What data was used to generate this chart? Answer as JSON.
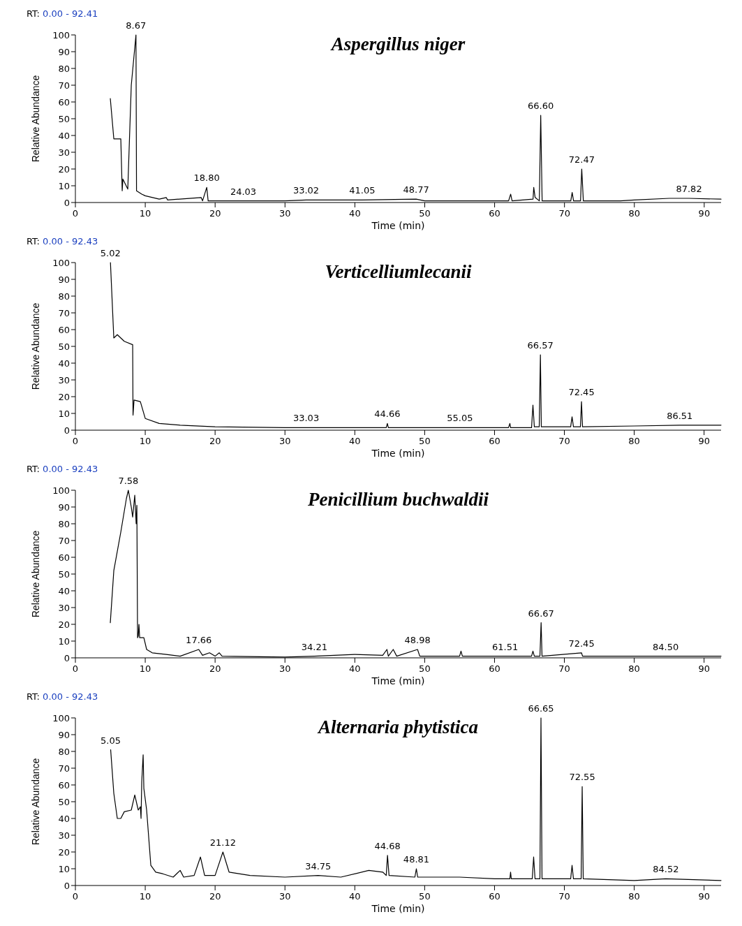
{
  "chart_data": [
    {
      "type": "line",
      "title": "Aspergillus niger",
      "xlabel": "Time (min)",
      "ylabel": "Relative Abundance",
      "color": "#000000",
      "xlim": [
        0,
        92.41
      ],
      "ylim": [
        0,
        100
      ],
      "xticks": [
        0,
        10,
        20,
        30,
        40,
        50,
        60,
        70,
        80,
        90
      ],
      "yticks": [
        0,
        10,
        20,
        30,
        40,
        50,
        60,
        70,
        80,
        90,
        100
      ],
      "x": [
        5,
        5.5,
        6.5,
        6.7,
        6.8,
        7.5,
        8,
        8.67,
        8.75,
        9.5,
        10,
        12,
        13,
        13.2,
        18,
        18.2,
        18.8,
        19,
        24.03,
        30,
        33.02,
        41.05,
        48.77,
        50,
        62,
        62.3,
        62.5,
        65.5,
        65.6,
        65.8,
        66.4,
        66.6,
        66.8,
        70.9,
        71.1,
        71.3,
        72.3,
        72.47,
        72.7,
        78,
        80,
        85,
        87.82,
        92.41
      ],
      "values": [
        62,
        38,
        38,
        7,
        14,
        8,
        70,
        100,
        7,
        5,
        4,
        2,
        3,
        1.5,
        3,
        1,
        9,
        1,
        1,
        1,
        1.5,
        1.5,
        2,
        1,
        1,
        5,
        1,
        2,
        9,
        3,
        1,
        52,
        1,
        1,
        6,
        1,
        1,
        20,
        1,
        1,
        1.5,
        2.5,
        2.5,
        2
      ],
      "annotations": [
        "RT: 0.00 - 92.41",
        {
          "text": "8.67",
          "x": 8.67,
          "y": 100
        },
        {
          "text": "18.80",
          "x": 18.8,
          "y": 9
        },
        {
          "text": "24.03",
          "x": 24.03,
          "y": 1
        },
        {
          "text": "33.02",
          "x": 33.02,
          "y": 1.5
        },
        {
          "text": "41.05",
          "x": 41.05,
          "y": 1.5
        },
        {
          "text": "48.77",
          "x": 48.77,
          "y": 2
        },
        {
          "text": "66.60",
          "x": 66.6,
          "y": 52
        },
        {
          "text": "72.47",
          "x": 72.47,
          "y": 20
        },
        {
          "text": "87.82",
          "x": 87.82,
          "y": 2.5
        }
      ]
    },
    {
      "type": "line",
      "title": "Verticelliumlecanii",
      "xlabel": "Time (min)",
      "ylabel": "Relative Abundance",
      "color": "#000000",
      "xlim": [
        0,
        92.43
      ],
      "ylim": [
        0,
        100
      ],
      "xticks": [
        0,
        10,
        20,
        30,
        40,
        50,
        60,
        70,
        80,
        90
      ],
      "yticks": [
        0,
        10,
        20,
        30,
        40,
        50,
        60,
        70,
        80,
        90,
        100
      ],
      "x": [
        5.02,
        5.5,
        6,
        7,
        8.2,
        8.25,
        8.4,
        9.3,
        10,
        12,
        15,
        20,
        30,
        33.03,
        44.5,
        44.66,
        44.8,
        55.05,
        62,
        62.2,
        62.3,
        65.3,
        65.5,
        65.7,
        66.4,
        66.57,
        66.7,
        70.9,
        71.1,
        71.3,
        72.3,
        72.45,
        72.6,
        80,
        86.51,
        92.43
      ],
      "values": [
        100,
        55,
        57,
        53,
        51,
        9,
        18,
        17,
        7,
        4,
        3,
        2,
        1.5,
        1.5,
        1.5,
        4,
        1.5,
        1.5,
        1.5,
        4,
        1.5,
        1.5,
        15,
        2,
        2,
        45,
        2,
        2,
        8,
        2,
        2,
        17,
        2,
        2.5,
        3,
        3
      ],
      "annotations": [
        "RT: 0.00 - 92.43",
        {
          "text": "5.02",
          "x": 5.02,
          "y": 100
        },
        {
          "text": "33.03",
          "x": 33.03,
          "y": 1.5
        },
        {
          "text": "44.66",
          "x": 44.66,
          "y": 4
        },
        {
          "text": "55.05",
          "x": 55.05,
          "y": 1.5
        },
        {
          "text": "66.57",
          "x": 66.57,
          "y": 45
        },
        {
          "text": "72.45",
          "x": 72.45,
          "y": 17
        },
        {
          "text": "86.51",
          "x": 86.51,
          "y": 3
        }
      ]
    },
    {
      "type": "line",
      "title": "Penicillium buchwaldii",
      "xlabel": "Time (min)",
      "ylabel": "Relative Abundance",
      "color": "#000000",
      "xlim": [
        0,
        92.43
      ],
      "ylim": [
        0,
        100
      ],
      "xticks": [
        0,
        10,
        20,
        30,
        40,
        50,
        60,
        70,
        80,
        90
      ],
      "yticks": [
        0,
        10,
        20,
        30,
        40,
        50,
        60,
        70,
        80,
        90,
        100
      ],
      "x": [
        5,
        5.5,
        6.5,
        7.3,
        7.58,
        8,
        8.2,
        8.5,
        8.7,
        8.8,
        8.9,
        9,
        9.1,
        9.2,
        9.8,
        10.2,
        11,
        13,
        15,
        17.66,
        18.2,
        19.2,
        20,
        20.6,
        21,
        30,
        34.21,
        40,
        44,
        44.6,
        44.8,
        45.5,
        46,
        48.98,
        49.3,
        55,
        55.2,
        55.4,
        61.51,
        65.3,
        65.5,
        65.7,
        66.5,
        66.67,
        66.8,
        72.45,
        72.6,
        84.5,
        92.43
      ],
      "values": [
        21,
        52,
        75,
        95,
        100,
        90,
        84,
        97,
        80,
        91,
        12,
        13,
        20,
        12,
        12,
        5,
        3,
        2,
        1,
        5,
        1.5,
        3,
        1,
        3,
        1,
        0.5,
        1,
        2,
        1.5,
        5,
        1,
        5,
        1,
        5,
        1,
        1,
        4,
        1,
        1,
        1,
        4,
        1,
        1,
        21,
        1,
        3,
        1,
        1,
        1
      ],
      "annotations": [
        "RT: 0.00 - 92.43",
        {
          "text": "7.58",
          "x": 7.58,
          "y": 100
        },
        {
          "text": "17.66",
          "x": 17.66,
          "y": 5
        },
        {
          "text": "34.21",
          "x": 34.21,
          "y": 1
        },
        {
          "text": "48.98",
          "x": 48.98,
          "y": 5
        },
        {
          "text": "61.51",
          "x": 61.51,
          "y": 1
        },
        {
          "text": "66.67",
          "x": 66.67,
          "y": 21
        },
        {
          "text": "72.45",
          "x": 72.45,
          "y": 3
        },
        {
          "text": "84.50",
          "x": 84.5,
          "y": 1
        }
      ]
    },
    {
      "type": "line",
      "title": "Alternaria phytistica",
      "xlabel": "Time (min)",
      "ylabel": "Relative Abundance",
      "color": "#000000",
      "xlim": [
        0,
        92.43
      ],
      "ylim": [
        0,
        100
      ],
      "xticks": [
        0,
        10,
        20,
        30,
        40,
        50,
        60,
        70,
        80,
        90
      ],
      "yticks": [
        0,
        10,
        20,
        30,
        40,
        50,
        60,
        70,
        80,
        90,
        100
      ],
      "x": [
        5.05,
        5.5,
        6,
        6.5,
        7,
        8,
        8.5,
        9,
        9.3,
        9.4,
        9.5,
        9.7,
        9.8,
        10.2,
        10.8,
        11.5,
        12.5,
        14,
        15,
        15.5,
        17,
        17.9,
        18.5,
        20,
        21.12,
        22,
        25,
        30,
        34.75,
        38,
        42,
        44,
        44.5,
        44.68,
        44.9,
        48.6,
        48.81,
        49,
        55,
        60,
        62.2,
        62.3,
        62.4,
        65.4,
        65.6,
        65.8,
        66.5,
        66.65,
        66.8,
        70.9,
        71.1,
        71.3,
        72.4,
        72.55,
        72.7,
        80,
        84.52,
        92.43
      ],
      "values": [
        81,
        55,
        40,
        40,
        44,
        45,
        54,
        45,
        47,
        40,
        62,
        78,
        58,
        45,
        12,
        8,
        7,
        5,
        9,
        5,
        6,
        17,
        6,
        6,
        20,
        8,
        6,
        5,
        6,
        5,
        9,
        8,
        6,
        18,
        6,
        5,
        10,
        5,
        5,
        4,
        4,
        8,
        4,
        4,
        17,
        4,
        4,
        100,
        4,
        4,
        12,
        4,
        4,
        59,
        4,
        3,
        4,
        3
      ],
      "annotations": [
        "RT: 0.00 - 92.43",
        {
          "text": "5.05",
          "x": 5.05,
          "y": 81
        },
        {
          "text": "21.12",
          "x": 21.12,
          "y": 20
        },
        {
          "text": "34.75",
          "x": 34.75,
          "y": 6
        },
        {
          "text": "44.68",
          "x": 44.68,
          "y": 18
        },
        {
          "text": "48.81",
          "x": 48.81,
          "y": 10
        },
        {
          "text": "66.65",
          "x": 66.65,
          "y": 100
        },
        {
          "text": "72.55",
          "x": 72.55,
          "y": 59
        },
        {
          "text": "84.52",
          "x": 84.52,
          "y": 4
        }
      ]
    }
  ]
}
